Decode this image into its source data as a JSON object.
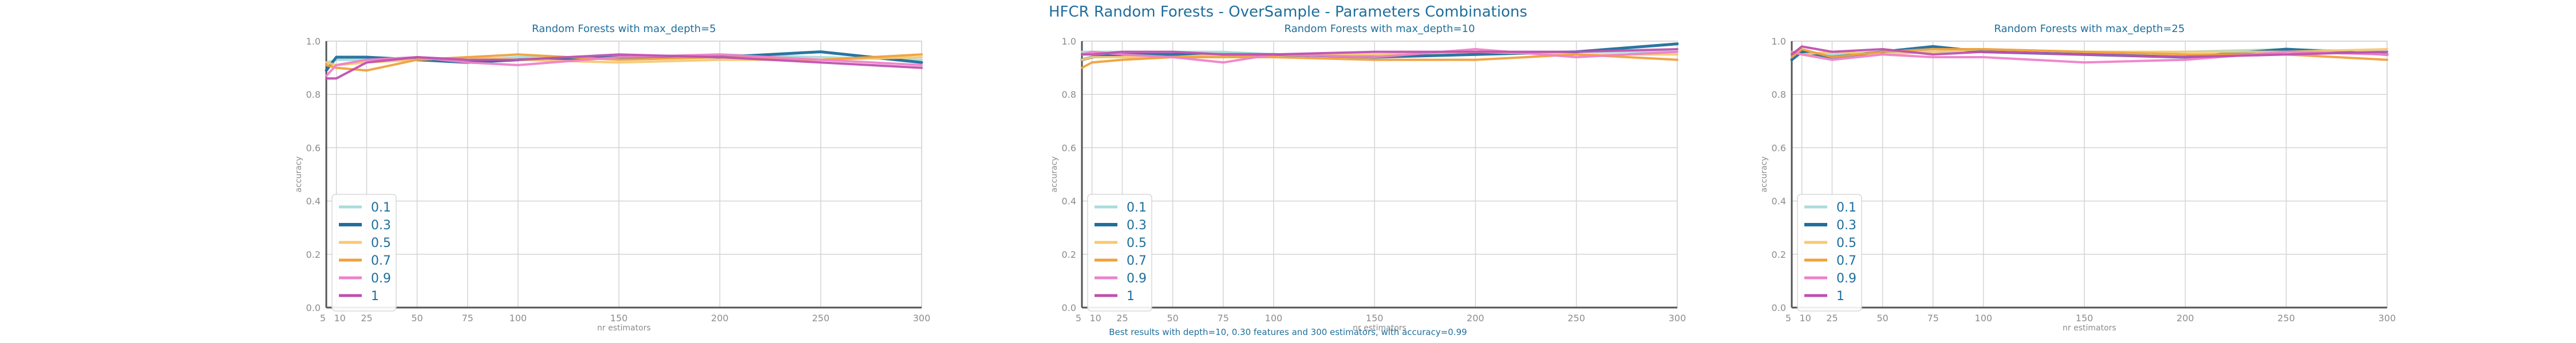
{
  "figure_title": "HFCR Random Forests - OverSample - Parameters Combinations",
  "footer_note": "Best results with depth=10, 0.30 features and 300 estimators, with accuracy=0.99",
  "colors": {
    "title": "#1f6e9c",
    "series": [
      "#a8dcd9",
      "#1f6e9c",
      "#f7c873",
      "#f0a03c",
      "#ee82c8",
      "#c050b0"
    ]
  },
  "chart_data": [
    {
      "type": "line",
      "title": "Random Forests with max_depth=5",
      "xlabel": "nr estimators",
      "ylabel": "accuracy",
      "xlim": [
        5,
        300
      ],
      "ylim": [
        0,
        1
      ],
      "x": [
        5,
        10,
        25,
        50,
        75,
        100,
        150,
        200,
        250,
        300
      ],
      "xticks": [
        "5",
        "10",
        "25",
        "50",
        "75",
        "100",
        "150",
        "200",
        "250",
        "300"
      ],
      "yticks": [
        "0.0",
        "0.2",
        "0.4",
        "0.6",
        "0.8",
        "1.0"
      ],
      "grid": true,
      "legend_position": "lower-left",
      "series": [
        {
          "name": "0.1",
          "values": [
            0.92,
            0.93,
            0.93,
            0.94,
            0.93,
            0.94,
            0.94,
            0.95,
            0.94,
            0.93
          ]
        },
        {
          "name": "0.3",
          "values": [
            0.89,
            0.94,
            0.94,
            0.93,
            0.92,
            0.93,
            0.94,
            0.94,
            0.96,
            0.92
          ]
        },
        {
          "name": "0.5",
          "values": [
            0.92,
            0.91,
            0.92,
            0.93,
            0.94,
            0.93,
            0.92,
            0.93,
            0.93,
            0.94
          ]
        },
        {
          "name": "0.7",
          "values": [
            0.91,
            0.9,
            0.89,
            0.93,
            0.94,
            0.95,
            0.93,
            0.94,
            0.93,
            0.95
          ]
        },
        {
          "name": "0.9",
          "values": [
            0.87,
            0.91,
            0.93,
            0.94,
            0.92,
            0.91,
            0.94,
            0.95,
            0.93,
            0.91
          ]
        },
        {
          "name": "1",
          "values": [
            0.86,
            0.86,
            0.92,
            0.94,
            0.93,
            0.93,
            0.95,
            0.94,
            0.92,
            0.9
          ]
        }
      ]
    },
    {
      "type": "line",
      "title": "Random Forests with max_depth=10",
      "xlabel": "nr estimators",
      "ylabel": "accuracy",
      "xlim": [
        5,
        300
      ],
      "ylim": [
        0,
        1
      ],
      "x": [
        5,
        10,
        25,
        50,
        75,
        100,
        150,
        200,
        250,
        300
      ],
      "xticks": [
        "5",
        "10",
        "25",
        "50",
        "75",
        "100",
        "150",
        "200",
        "250",
        "300"
      ],
      "yticks": [
        "0.0",
        "0.2",
        "0.4",
        "0.6",
        "0.8",
        "1.0"
      ],
      "grid": true,
      "legend_position": "lower-left",
      "series": [
        {
          "name": "0.1",
          "values": [
            0.96,
            0.96,
            0.96,
            0.96,
            0.96,
            0.95,
            0.95,
            0.96,
            0.96,
            0.96
          ]
        },
        {
          "name": "0.3",
          "values": [
            0.93,
            0.94,
            0.95,
            0.95,
            0.95,
            0.95,
            0.94,
            0.95,
            0.96,
            0.99
          ]
        },
        {
          "name": "0.5",
          "values": [
            0.93,
            0.94,
            0.94,
            0.94,
            0.95,
            0.95,
            0.95,
            0.96,
            0.95,
            0.95
          ]
        },
        {
          "name": "0.7",
          "values": [
            0.9,
            0.92,
            0.93,
            0.94,
            0.94,
            0.94,
            0.93,
            0.93,
            0.95,
            0.93
          ]
        },
        {
          "name": "0.9",
          "values": [
            0.95,
            0.96,
            0.95,
            0.94,
            0.92,
            0.95,
            0.94,
            0.97,
            0.94,
            0.96
          ]
        },
        {
          "name": "1",
          "values": [
            0.95,
            0.95,
            0.96,
            0.96,
            0.95,
            0.95,
            0.96,
            0.96,
            0.96,
            0.97
          ]
        }
      ]
    },
    {
      "type": "line",
      "title": "Random Forests with max_depth=25",
      "xlabel": "nr estimators",
      "ylabel": "accuracy",
      "xlim": [
        5,
        300
      ],
      "ylim": [
        0,
        1
      ],
      "x": [
        5,
        10,
        25,
        50,
        75,
        100,
        150,
        200,
        250,
        300
      ],
      "xticks": [
        "5",
        "10",
        "25",
        "50",
        "75",
        "100",
        "150",
        "200",
        "250",
        "300"
      ],
      "yticks": [
        "0.0",
        "0.2",
        "0.4",
        "0.6",
        "0.8",
        "1.0"
      ],
      "grid": true,
      "legend_position": "lower-left",
      "series": [
        {
          "name": "0.1",
          "values": [
            0.95,
            0.96,
            0.95,
            0.96,
            0.96,
            0.96,
            0.95,
            0.96,
            0.97,
            0.96
          ]
        },
        {
          "name": "0.3",
          "values": [
            0.93,
            0.96,
            0.94,
            0.96,
            0.98,
            0.96,
            0.95,
            0.94,
            0.97,
            0.95
          ]
        },
        {
          "name": "0.5",
          "values": [
            0.96,
            0.95,
            0.96,
            0.95,
            0.96,
            0.97,
            0.96,
            0.96,
            0.96,
            0.97
          ]
        },
        {
          "name": "0.7",
          "values": [
            0.94,
            0.97,
            0.94,
            0.96,
            0.97,
            0.97,
            0.96,
            0.95,
            0.95,
            0.93
          ]
        },
        {
          "name": "0.9",
          "values": [
            0.96,
            0.95,
            0.93,
            0.95,
            0.94,
            0.94,
            0.92,
            0.93,
            0.96,
            0.95
          ]
        },
        {
          "name": "1",
          "values": [
            0.95,
            0.98,
            0.96,
            0.97,
            0.95,
            0.96,
            0.95,
            0.94,
            0.95,
            0.96
          ]
        }
      ]
    }
  ]
}
